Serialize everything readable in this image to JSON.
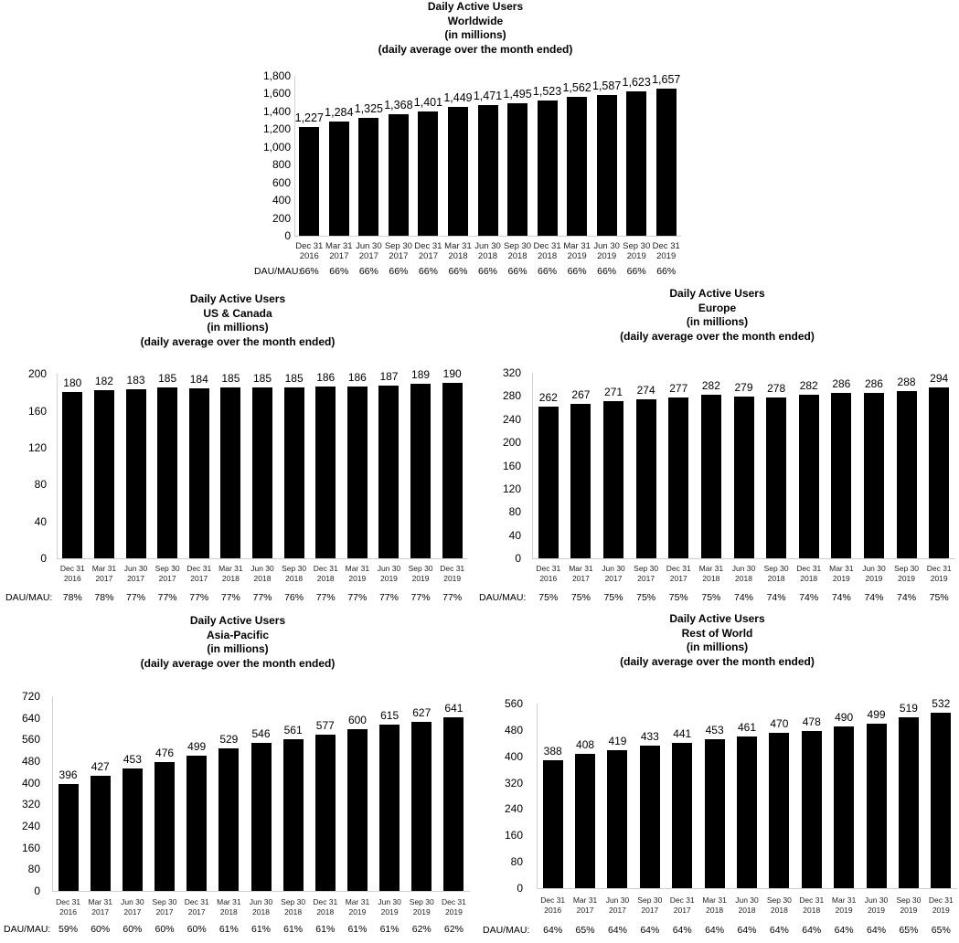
{
  "chart_data": [
    {
      "id": "worldwide",
      "type": "bar",
      "title": "Daily Active Users",
      "title_lines": [
        "Daily Active Users",
        "Worldwide",
        "(in millions)",
        "(daily average over the month ended)"
      ],
      "categories": [
        "Dec 31 2016",
        "Mar 31 2017",
        "Jun 30 2017",
        "Sep 30 2017",
        "Dec 31 2017",
        "Mar 31 2018",
        "Jun 30 2018",
        "Sep 30 2018",
        "Dec 31 2018",
        "Mar 31 2019",
        "Jun 30 2019",
        "Sep 30 2019",
        "Dec 31 2019"
      ],
      "category_lines": [
        [
          "Dec 31",
          "2016"
        ],
        [
          "Mar 31",
          "2017"
        ],
        [
          "Jun 30",
          "2017"
        ],
        [
          "Sep 30",
          "2017"
        ],
        [
          "Dec 31",
          "2017"
        ],
        [
          "Mar 31",
          "2018"
        ],
        [
          "Jun 30",
          "2018"
        ],
        [
          "Sep 30",
          "2018"
        ],
        [
          "Dec 31",
          "2018"
        ],
        [
          "Mar 31",
          "2019"
        ],
        [
          "Jun 30",
          "2019"
        ],
        [
          "Sep 30",
          "2019"
        ],
        [
          "Dec 31",
          "2019"
        ]
      ],
      "values": [
        1227,
        1284,
        1325,
        1368,
        1401,
        1449,
        1471,
        1495,
        1523,
        1562,
        1587,
        1623,
        1657
      ],
      "value_labels": [
        "1,227",
        "1,284",
        "1,325",
        "1,368",
        "1,401",
        "1,449",
        "1,471",
        "1,495",
        "1,523",
        "1,562",
        "1,587",
        "1,623",
        "1,657"
      ],
      "yticks": [
        "0",
        "200",
        "400",
        "600",
        "800",
        "1,000",
        "1,200",
        "1,400",
        "1,600",
        "1,800"
      ],
      "ylim": [
        0,
        1800
      ],
      "xlabel": "",
      "ylabel": "",
      "ratio_label": "DAU/MAU:",
      "dau_mau": [
        "66%",
        "66%",
        "66%",
        "66%",
        "66%",
        "66%",
        "66%",
        "66%",
        "66%",
        "66%",
        "66%",
        "66%",
        "66%"
      ],
      "bar_color": "#000000",
      "grid": false,
      "legend": "none"
    },
    {
      "id": "us_canada",
      "type": "bar",
      "title": "Daily Active Users",
      "title_lines": [
        "Daily Active Users",
        "US & Canada",
        "(in millions)",
        "(daily average over the month ended)"
      ],
      "categories": [
        "Dec 31 2016",
        "Mar 31 2017",
        "Jun 30 2017",
        "Sep 30 2017",
        "Dec 31 2017",
        "Mar 31 2018",
        "Jun 30 2018",
        "Sep 30 2018",
        "Dec 31 2018",
        "Mar 31 2019",
        "Jun 30 2019",
        "Sep 30 2019",
        "Dec 31 2019"
      ],
      "category_lines": [
        [
          "Dec 31",
          "2016"
        ],
        [
          "Mar 31",
          "2017"
        ],
        [
          "Jun 30",
          "2017"
        ],
        [
          "Sep 30",
          "2017"
        ],
        [
          "Dec 31",
          "2017"
        ],
        [
          "Mar 31",
          "2018"
        ],
        [
          "Jun 30",
          "2018"
        ],
        [
          "Sep 30",
          "2018"
        ],
        [
          "Dec 31",
          "2018"
        ],
        [
          "Mar 31",
          "2019"
        ],
        [
          "Jun 30",
          "2019"
        ],
        [
          "Sep 30",
          "2019"
        ],
        [
          "Dec 31",
          "2019"
        ]
      ],
      "values": [
        180,
        182,
        183,
        185,
        184,
        185,
        185,
        185,
        186,
        186,
        187,
        189,
        190
      ],
      "value_labels": [
        "180",
        "182",
        "183",
        "185",
        "184",
        "185",
        "185",
        "185",
        "186",
        "186",
        "187",
        "189",
        "190"
      ],
      "yticks": [
        "0",
        "40",
        "80",
        "120",
        "160",
        "200"
      ],
      "ylim": [
        0,
        200
      ],
      "xlabel": "",
      "ylabel": "",
      "ratio_label": "DAU/MAU:",
      "dau_mau": [
        "78%",
        "78%",
        "77%",
        "77%",
        "77%",
        "77%",
        "77%",
        "76%",
        "77%",
        "77%",
        "77%",
        "77%",
        "77%"
      ],
      "bar_color": "#000000",
      "grid": false,
      "legend": "none"
    },
    {
      "id": "europe",
      "type": "bar",
      "title": "Daily Active Users",
      "title_lines": [
        "Daily Active Users",
        "Europe",
        "(in millions)",
        "(daily average over the month ended)"
      ],
      "categories": [
        "Dec 31 2016",
        "Mar 31 2017",
        "Jun 30 2017",
        "Sep 30 2017",
        "Dec 31 2017",
        "Mar 31 2018",
        "Jun 30 2018",
        "Sep 30 2018",
        "Dec 31 2018",
        "Mar 31 2019",
        "Jun 30 2019",
        "Sep 30 2019",
        "Dec 31 2019"
      ],
      "category_lines": [
        [
          "Dec 31",
          "2016"
        ],
        [
          "Mar 31",
          "2017"
        ],
        [
          "Jun 30",
          "2017"
        ],
        [
          "Sep 30",
          "2017"
        ],
        [
          "Dec 31",
          "2017"
        ],
        [
          "Mar 31",
          "2018"
        ],
        [
          "Jun 30",
          "2018"
        ],
        [
          "Sep 30",
          "2018"
        ],
        [
          "Dec 31",
          "2018"
        ],
        [
          "Mar 31",
          "2019"
        ],
        [
          "Jun 30",
          "2019"
        ],
        [
          "Sep 30",
          "2019"
        ],
        [
          "Dec 31",
          "2019"
        ]
      ],
      "values": [
        262,
        267,
        271,
        274,
        277,
        282,
        279,
        278,
        282,
        286,
        286,
        288,
        294
      ],
      "value_labels": [
        "262",
        "267",
        "271",
        "274",
        "277",
        "282",
        "279",
        "278",
        "282",
        "286",
        "286",
        "288",
        "294"
      ],
      "yticks": [
        "0",
        "40",
        "80",
        "120",
        "160",
        "200",
        "240",
        "280",
        "320"
      ],
      "ylim": [
        0,
        320
      ],
      "xlabel": "",
      "ylabel": "",
      "ratio_label": "DAU/MAU:",
      "dau_mau": [
        "75%",
        "75%",
        "75%",
        "75%",
        "75%",
        "75%",
        "74%",
        "74%",
        "74%",
        "74%",
        "74%",
        "74%",
        "75%"
      ],
      "bar_color": "#000000",
      "grid": false,
      "legend": "none"
    },
    {
      "id": "asia_pacific",
      "type": "bar",
      "title": "Daily Active Users",
      "title_lines": [
        "Daily Active Users",
        "Asia-Pacific",
        "(in millions)",
        "(daily average over the month ended)"
      ],
      "categories": [
        "Dec 31 2016",
        "Mar 31 2017",
        "Jun 30 2017",
        "Sep 30 2017",
        "Dec 31 2017",
        "Mar 31 2018",
        "Jun 30 2018",
        "Sep 30 2018",
        "Dec 31 2018",
        "Mar 31 2019",
        "Jun 30 2019",
        "Sep 30 2019",
        "Dec 31 2019"
      ],
      "category_lines": [
        [
          "Dec 31",
          "2016"
        ],
        [
          "Mar 31",
          "2017"
        ],
        [
          "Jun 30",
          "2017"
        ],
        [
          "Sep 30",
          "2017"
        ],
        [
          "Dec 31",
          "2017"
        ],
        [
          "Mar 31",
          "2018"
        ],
        [
          "Jun 30",
          "2018"
        ],
        [
          "Sep 30",
          "2018"
        ],
        [
          "Dec 31",
          "2018"
        ],
        [
          "Mar 31",
          "2019"
        ],
        [
          "Jun 30",
          "2019"
        ],
        [
          "Sep 30",
          "2019"
        ],
        [
          "Dec 31",
          "2019"
        ]
      ],
      "values": [
        396,
        427,
        453,
        476,
        499,
        529,
        546,
        561,
        577,
        600,
        615,
        627,
        641
      ],
      "value_labels": [
        "396",
        "427",
        "453",
        "476",
        "499",
        "529",
        "546",
        "561",
        "577",
        "600",
        "615",
        "627",
        "641"
      ],
      "yticks": [
        "0",
        "80",
        "160",
        "240",
        "320",
        "400",
        "480",
        "560",
        "640",
        "720"
      ],
      "ylim": [
        0,
        720
      ],
      "xlabel": "",
      "ylabel": "",
      "ratio_label": "DAU/MAU:",
      "dau_mau": [
        "59%",
        "60%",
        "60%",
        "60%",
        "60%",
        "61%",
        "61%",
        "61%",
        "61%",
        "61%",
        "61%",
        "62%",
        "62%"
      ],
      "bar_color": "#000000",
      "grid": false,
      "legend": "none"
    },
    {
      "id": "rest_of_world",
      "type": "bar",
      "title": "Daily Active Users",
      "title_lines": [
        "Daily Active Users",
        "Rest of World",
        "(in millions)",
        "(daily average over the month ended)"
      ],
      "categories": [
        "Dec 31 2016",
        "Mar 31 2017",
        "Jun 30 2017",
        "Sep 30 2017",
        "Dec 31 2017",
        "Mar 31 2018",
        "Jun 30 2018",
        "Sep 30 2018",
        "Dec 31 2018",
        "Mar 31 2019",
        "Jun 30 2019",
        "Sep 30 2019",
        "Dec 31 2019"
      ],
      "category_lines": [
        [
          "Dec 31",
          "2016"
        ],
        [
          "Mar 31",
          "2017"
        ],
        [
          "Jun 30",
          "2017"
        ],
        [
          "Sep 30",
          "2017"
        ],
        [
          "Dec 31",
          "2017"
        ],
        [
          "Mar 31",
          "2018"
        ],
        [
          "Jun 30",
          "2018"
        ],
        [
          "Sep 30",
          "2018"
        ],
        [
          "Dec 31",
          "2018"
        ],
        [
          "Mar 31",
          "2019"
        ],
        [
          "Jun 30",
          "2019"
        ],
        [
          "Sep 30",
          "2019"
        ],
        [
          "Dec 31",
          "2019"
        ]
      ],
      "values": [
        388,
        408,
        419,
        433,
        441,
        453,
        461,
        470,
        478,
        490,
        499,
        519,
        532
      ],
      "value_labels": [
        "388",
        "408",
        "419",
        "433",
        "441",
        "453",
        "461",
        "470",
        "478",
        "490",
        "499",
        "519",
        "532"
      ],
      "yticks": [
        "0",
        "80",
        "160",
        "240",
        "320",
        "400",
        "480",
        "560"
      ],
      "ylim": [
        0,
        560
      ],
      "xlabel": "",
      "ylabel": "",
      "ratio_label": "DAU/MAU:",
      "dau_mau": [
        "64%",
        "65%",
        "64%",
        "64%",
        "64%",
        "64%",
        "64%",
        "64%",
        "64%",
        "64%",
        "64%",
        "65%",
        "65%"
      ],
      "bar_color": "#000000",
      "grid": false,
      "legend": "none"
    }
  ]
}
